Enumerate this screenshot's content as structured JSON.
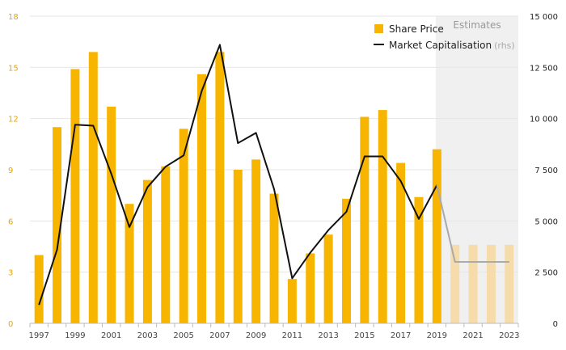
{
  "chart_data": {
    "type": "bar",
    "x": [
      1997,
      1998,
      1999,
      2000,
      2001,
      2002,
      2003,
      2004,
      2005,
      2006,
      2007,
      2008,
      2009,
      2010,
      2011,
      2012,
      2013,
      2014,
      2015,
      2016,
      2017,
      2018,
      2019,
      2020,
      2021,
      2022,
      2023
    ],
    "xtick_labels": [
      "1997",
      "1999",
      "2001",
      "2003",
      "2005",
      "2007",
      "2009",
      "2011",
      "2013",
      "2015",
      "2017",
      "2019",
      "2021",
      "2023"
    ],
    "series": [
      {
        "name": "Share Price",
        "type": "bar",
        "axis": "left",
        "color": "#f7b500",
        "estimate_color": "#f5dcaa",
        "values": [
          4.0,
          11.5,
          14.9,
          15.9,
          12.7,
          7.0,
          8.4,
          9.2,
          11.4,
          14.6,
          15.9,
          9.0,
          9.6,
          7.6,
          2.6,
          4.1,
          5.2,
          7.3,
          12.1,
          12.5,
          9.4,
          7.4,
          10.2,
          4.6,
          4.6,
          4.6,
          4.6
        ]
      },
      {
        "name": "Market Capitalisation",
        "name_suffix": "(rhs)",
        "type": "line",
        "axis": "right",
        "color": "#111111",
        "estimate_color": "#aaaaaa",
        "values": [
          900,
          3600,
          9700,
          9650,
          7300,
          4700,
          6650,
          7650,
          8200,
          11350,
          13600,
          8800,
          9300,
          6550,
          2200,
          3450,
          4550,
          5450,
          8150,
          8150,
          6950,
          5100,
          6750,
          3000,
          3000,
          3000,
          3000
        ]
      }
    ],
    "estimates_from_index": 23,
    "estimates_label": "Estimates",
    "estimates_shade": "#f0f0f0",
    "y_left": {
      "lim": [
        0,
        18
      ],
      "ticks": [
        "0",
        "3",
        "6",
        "9",
        "12",
        "15",
        "18"
      ],
      "color": "#e8a600"
    },
    "y_right": {
      "lim": [
        0,
        15000
      ],
      "ticks": [
        "0",
        "2 500",
        "5 000",
        "7 500",
        "10 000",
        "12 500",
        "15 000"
      ],
      "color": "#222222"
    },
    "grid": true,
    "legend_position": "top-right"
  }
}
